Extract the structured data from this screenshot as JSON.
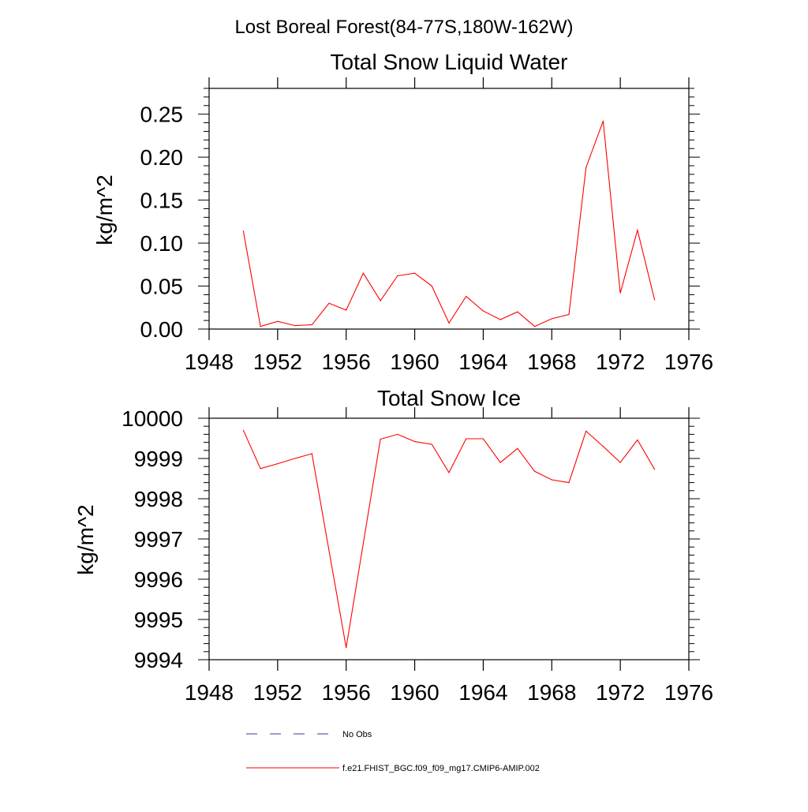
{
  "page_title": "Lost Boreal Forest(84-77S,180W-162W)",
  "chart_data": [
    {
      "type": "line",
      "title": "Total Snow Liquid Water",
      "xlabel": "",
      "ylabel": "kg/m^2",
      "xlim": [
        1948,
        1976
      ],
      "ylim": [
        0,
        0.28
      ],
      "xticks": [
        "1948",
        "1952",
        "1956",
        "1960",
        "1964",
        "1968",
        "1972",
        "1976"
      ],
      "yticks": [
        "0.00",
        "0.05",
        "0.10",
        "0.15",
        "0.20",
        "0.25"
      ],
      "x": [
        1950,
        1951,
        1952,
        1953,
        1954,
        1955,
        1956,
        1957,
        1958,
        1959,
        1960,
        1961,
        1962,
        1963,
        1964,
        1965,
        1966,
        1967,
        1968,
        1969,
        1970,
        1971,
        1972,
        1973,
        1974
      ],
      "series": [
        {
          "name": "f.e21.FHIST_BGC.f09_f09_mg17.CMIP6-AMIP.002",
          "color": "#ff0000",
          "values": [
            0.114,
            0.003,
            0.009,
            0.004,
            0.005,
            0.03,
            0.022,
            0.065,
            0.033,
            0.062,
            0.065,
            0.05,
            0.007,
            0.038,
            0.021,
            0.011,
            0.02,
            0.003,
            0.012,
            0.017,
            0.188,
            0.242,
            0.042,
            0.115,
            0.034
          ]
        }
      ],
      "grid": false
    },
    {
      "type": "line",
      "title": "Total Snow Ice",
      "xlabel": "",
      "ylabel": "kg/m^2",
      "xlim": [
        1948,
        1976
      ],
      "ylim": [
        9994,
        10000
      ],
      "xticks": [
        "1948",
        "1952",
        "1956",
        "1960",
        "1964",
        "1968",
        "1972",
        "1976"
      ],
      "yticks": [
        "9994",
        "9995",
        "9996",
        "9997",
        "9998",
        "9999",
        "10000"
      ],
      "x": [
        1950,
        1951,
        1952,
        1953,
        1954,
        1955,
        1956,
        1957,
        1958,
        1959,
        1960,
        1961,
        1962,
        1963,
        1964,
        1965,
        1966,
        1967,
        1968,
        1969,
        1970,
        1971,
        1972,
        1973,
        1974
      ],
      "series": [
        {
          "name": "f.e21.FHIST_BGC.f09_f09_mg17.CMIP6-AMIP.002",
          "color": "#ff0000",
          "values": [
            9999.7,
            9998.75,
            9998.87,
            9999.0,
            9999.12,
            null,
            9994.3,
            null,
            9999.48,
            9999.6,
            9999.42,
            9999.35,
            9998.65,
            9999.49,
            9999.49,
            9998.9,
            9999.25,
            9998.68,
            9998.47,
            9998.4,
            9999.68,
            9999.3,
            9998.9,
            9999.46,
            9998.73
          ]
        }
      ],
      "grid": false
    }
  ],
  "legend": {
    "placement": "bottom",
    "entries": [
      {
        "label": "No Obs",
        "color": "#3a3a8c",
        "dashed": true
      },
      {
        "label": "f.e21.FHIST_BGC.f09_f09_mg17.CMIP6-AMIP.002",
        "color": "#ff0000",
        "dashed": false
      }
    ]
  }
}
